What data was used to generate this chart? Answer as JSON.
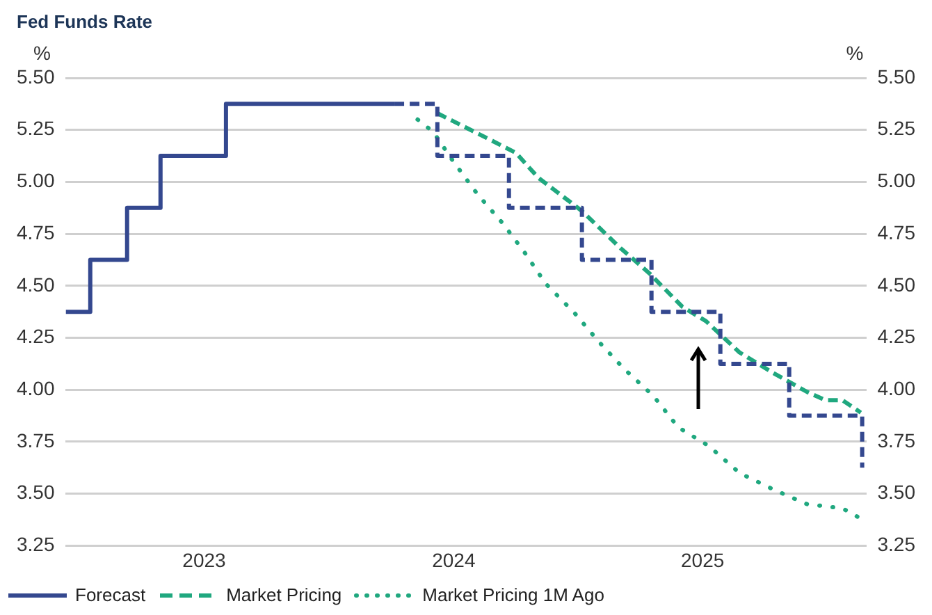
{
  "chart_data": {
    "type": "line",
    "title": "Fed Funds Rate",
    "ylabel": "%",
    "y2label": "%",
    "xlim": [
      "2022-12-10",
      "2026-02-26"
    ],
    "xticks": [
      {
        "value": "2023-07-01",
        "label": "2023"
      },
      {
        "value": "2024-07-01",
        "label": "2024"
      },
      {
        "value": "2025-07-01",
        "label": "2025"
      }
    ],
    "ylim": [
      3.25,
      5.5
    ],
    "yticks": [
      3.25,
      {
        "value": 3.5,
        "label": "3.50"
      },
      3.75,
      {
        "value": 4,
        "label": "4.00"
      },
      4.25,
      {
        "value": 4.5,
        "label": "4.50"
      },
      4.75,
      {
        "value": 5,
        "label": "5.00"
      },
      5.25,
      {
        "value": 5.5,
        "label": "5.50"
      }
    ],
    "y2lim": [
      3.25,
      5.5
    ],
    "y2ticks": [
      3.25,
      {
        "value": 3.5,
        "label": "3.50"
      },
      3.75,
      {
        "value": 4,
        "label": "4.00"
      },
      4.25,
      {
        "value": 4.5,
        "label": "4.50"
      },
      4.75,
      {
        "value": 5,
        "label": "5.00"
      },
      5.25,
      {
        "value": 5.5,
        "label": "5.50"
      }
    ],
    "grid": "y",
    "legend": "bottom",
    "series": [
      {
        "name": "Forecast",
        "type": "step",
        "color": "#34488f",
        "line_style": "solid",
        "x": [
          "2022-12-10",
          "2023-01-15",
          "2023-03-10",
          "2023-04-28",
          "2023-08-02",
          "2024-04-05"
        ],
        "values": [
          4.375,
          4.625,
          4.875,
          5.125,
          5.375,
          5.375
        ]
      },
      {
        "type": "step",
        "color": "#34488f",
        "line_style": "dashed",
        "x": [
          "2024-04-05",
          "2024-06-07",
          "2024-09-20",
          "2025-01-05",
          "2025-04-17",
          "2025-07-27",
          "2025-11-05",
          "2026-02-20"
        ],
        "values": [
          5.375,
          5.125,
          4.875,
          4.625,
          4.375,
          4.125,
          3.875,
          3.625
        ]
      },
      {
        "name": "Market Pricing",
        "type": "line",
        "color": "#20a87f",
        "line_style": "dashed",
        "x": [
          "2024-06-07",
          "2024-08-19",
          "2024-09-30",
          "2024-11-02",
          "2025-01-05",
          "2025-03-03",
          "2025-04-14",
          "2025-06-01",
          "2025-07-06",
          "2025-08-24",
          "2025-10-13",
          "2025-12-01",
          "2025-12-28",
          "2026-01-22",
          "2026-02-18"
        ],
        "values": [
          5.33,
          5.21,
          5.14,
          5.02,
          4.86,
          4.68,
          4.56,
          4.4,
          4.33,
          4.18,
          4.08,
          3.99,
          3.95,
          3.95,
          3.89
        ]
      },
      {
        "name": "Market Pricing 1M Ago",
        "type": "line",
        "color": "#20a87f",
        "line_style": "dotted",
        "x": [
          "2024-05-09",
          "2024-06-01",
          "2024-06-30",
          "2024-08-05",
          "2024-09-11",
          "2024-10-13",
          "2024-11-13",
          "2024-12-25",
          "2025-01-30",
          "2025-03-08",
          "2025-04-20",
          "2025-05-26",
          "2025-07-10",
          "2025-08-24",
          "2025-10-13",
          "2025-12-01",
          "2026-01-22",
          "2026-02-18"
        ],
        "values": [
          5.3,
          5.24,
          5.1,
          4.94,
          4.8,
          4.66,
          4.51,
          4.37,
          4.23,
          4.1,
          3.97,
          3.82,
          3.73,
          3.6,
          3.52,
          3.45,
          3.43,
          3.38
        ]
      }
    ]
  }
}
